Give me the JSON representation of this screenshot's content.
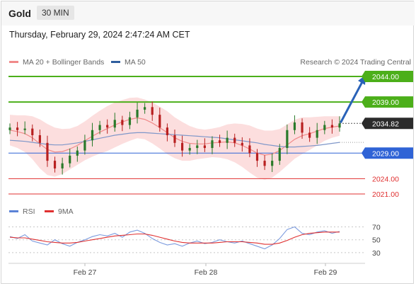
{
  "header": {
    "symbol": "Gold",
    "interval": "30 MIN",
    "timestamp": "Thursday, February 29, 2024 2:47:24 AM CET"
  },
  "legend": {
    "items": [
      {
        "label": "MA 20 + Bollinger Bands",
        "color": "#f08a8a"
      },
      {
        "label": "MA 50",
        "color": "#2f5e9e"
      }
    ],
    "credit": "Research © 2024 Trading Central"
  },
  "rsi_legend": {
    "items": [
      {
        "label": "RSI",
        "color": "#5b82d6"
      },
      {
        "label": "9MA",
        "color": "#e03030"
      }
    ]
  },
  "chart_data": [
    {
      "type": "candlestick",
      "title": "Gold",
      "x": [
        "Feb 27",
        "Feb 28",
        "Feb 29"
      ],
      "ylim": [
        2017,
        2047
      ],
      "price_levels": [
        {
          "label": "2044.00",
          "value": 2044.0,
          "color": "#4caf1a",
          "kind": "resistance"
        },
        {
          "label": "2039.00",
          "value": 2039.0,
          "color": "#4caf1a",
          "kind": "resistance"
        },
        {
          "label": "2034.82",
          "value": 2034.82,
          "color": "#222222",
          "kind": "last"
        },
        {
          "label": "2029.00",
          "value": 2029.0,
          "color": "#2f63d6",
          "kind": "pivot"
        },
        {
          "label": "2024.00",
          "value": 2024.0,
          "color": "#e03030",
          "kind": "support"
        },
        {
          "label": "2021.00",
          "value": 2021.0,
          "color": "#e03030",
          "kind": "support"
        }
      ],
      "close_series": [
        2034.0,
        2033.5,
        2033.8,
        2032.5,
        2031.0,
        2027.5,
        2026.0,
        2027.0,
        2028.5,
        2029.5,
        2031.5,
        2033.5,
        2034.5,
        2034.0,
        2035.5,
        2034.5,
        2036.0,
        2037.5,
        2038.0,
        2036.5,
        2034.0,
        2032.5,
        2031.0,
        2029.5,
        2030.0,
        2030.5,
        2030.0,
        2031.5,
        2031.0,
        2032.0,
        2031.0,
        2030.5,
        2029.0,
        2027.5,
        2026.5,
        2027.5,
        2030.0,
        2033.5,
        2035.0,
        2033.0,
        2032.0,
        2033.5,
        2034.5,
        2034.0,
        2034.8
      ],
      "ma20": [
        2033.5,
        2033.2,
        2032.8,
        2032.0,
        2030.8,
        2029.7,
        2029.2,
        2029.3,
        2029.8,
        2030.5,
        2031.4,
        2032.3,
        2033.1,
        2033.8,
        2034.5,
        2035.1,
        2035.6,
        2035.9,
        2035.6,
        2034.9,
        2034.0,
        2033.0,
        2032.0,
        2031.3,
        2030.9,
        2030.8,
        2030.8,
        2031.0,
        2031.1,
        2031.2,
        2031.0,
        2030.5,
        2029.8,
        2029.0,
        2028.6,
        2028.8,
        2029.5,
        2030.6,
        2031.7,
        2032.4,
        2032.8,
        2033.3,
        2033.8,
        2034.1,
        2034.3
      ],
      "ma50": [
        2031.5,
        2031.4,
        2031.3,
        2031.1,
        2030.9,
        2030.7,
        2030.6,
        2030.6,
        2030.8,
        2031.0,
        2031.3,
        2031.6,
        2031.9,
        2032.2,
        2032.5,
        2032.7,
        2032.9,
        2033.0,
        2033.0,
        2032.9,
        2032.8,
        2032.7,
        2032.6,
        2032.5,
        2032.4,
        2032.3,
        2032.2,
        2032.1,
        2032.0,
        2031.8,
        2031.6,
        2031.4,
        2031.2,
        2031.0,
        2030.7,
        2030.5,
        2030.3,
        2030.2,
        2030.2,
        2030.3,
        2030.4,
        2030.5,
        2030.7,
        2030.9,
        2031.1
      ],
      "bb_width": [
        3.0,
        3.2,
        3.6,
        4.2,
        4.8,
        5.0,
        4.8,
        4.4,
        4.0,
        3.8,
        3.8,
        4.0,
        4.2,
        4.4,
        4.4,
        4.3,
        4.2,
        4.0,
        3.9,
        4.0,
        4.1,
        4.2,
        4.0,
        3.8,
        3.4,
        3.0,
        2.8,
        2.8,
        3.0,
        3.4,
        3.8,
        4.2,
        4.6,
        4.8,
        4.8,
        4.6,
        4.2,
        4.0,
        3.8,
        3.6,
        3.2,
        2.8,
        2.4,
        2.1,
        1.9
      ]
    },
    {
      "type": "line",
      "title": "RSI",
      "ylim": [
        20,
        75
      ],
      "yticks": [
        70,
        50,
        30
      ],
      "series": [
        {
          "name": "RSI",
          "color": "#5b82d6",
          "values": [
            55,
            52,
            58,
            48,
            45,
            42,
            50,
            44,
            40,
            46,
            50,
            55,
            58,
            56,
            60,
            54,
            62,
            65,
            60,
            52,
            46,
            42,
            44,
            40,
            45,
            48,
            44,
            46,
            50,
            47,
            45,
            48,
            44,
            40,
            36,
            42,
            52,
            66,
            70,
            60,
            58,
            62,
            64,
            60,
            63
          ]
        },
        {
          "name": "9MA",
          "color": "#e03030",
          "values": [
            54,
            53,
            53,
            51,
            49,
            47,
            46,
            45,
            45,
            46,
            48,
            50,
            52,
            54,
            56,
            57,
            58,
            59,
            59,
            57,
            54,
            51,
            48,
            46,
            45,
            45,
            45,
            45,
            46,
            47,
            47,
            47,
            46,
            45,
            43,
            43,
            45,
            49,
            54,
            58,
            60,
            61,
            62,
            62,
            62
          ]
        }
      ]
    }
  ]
}
